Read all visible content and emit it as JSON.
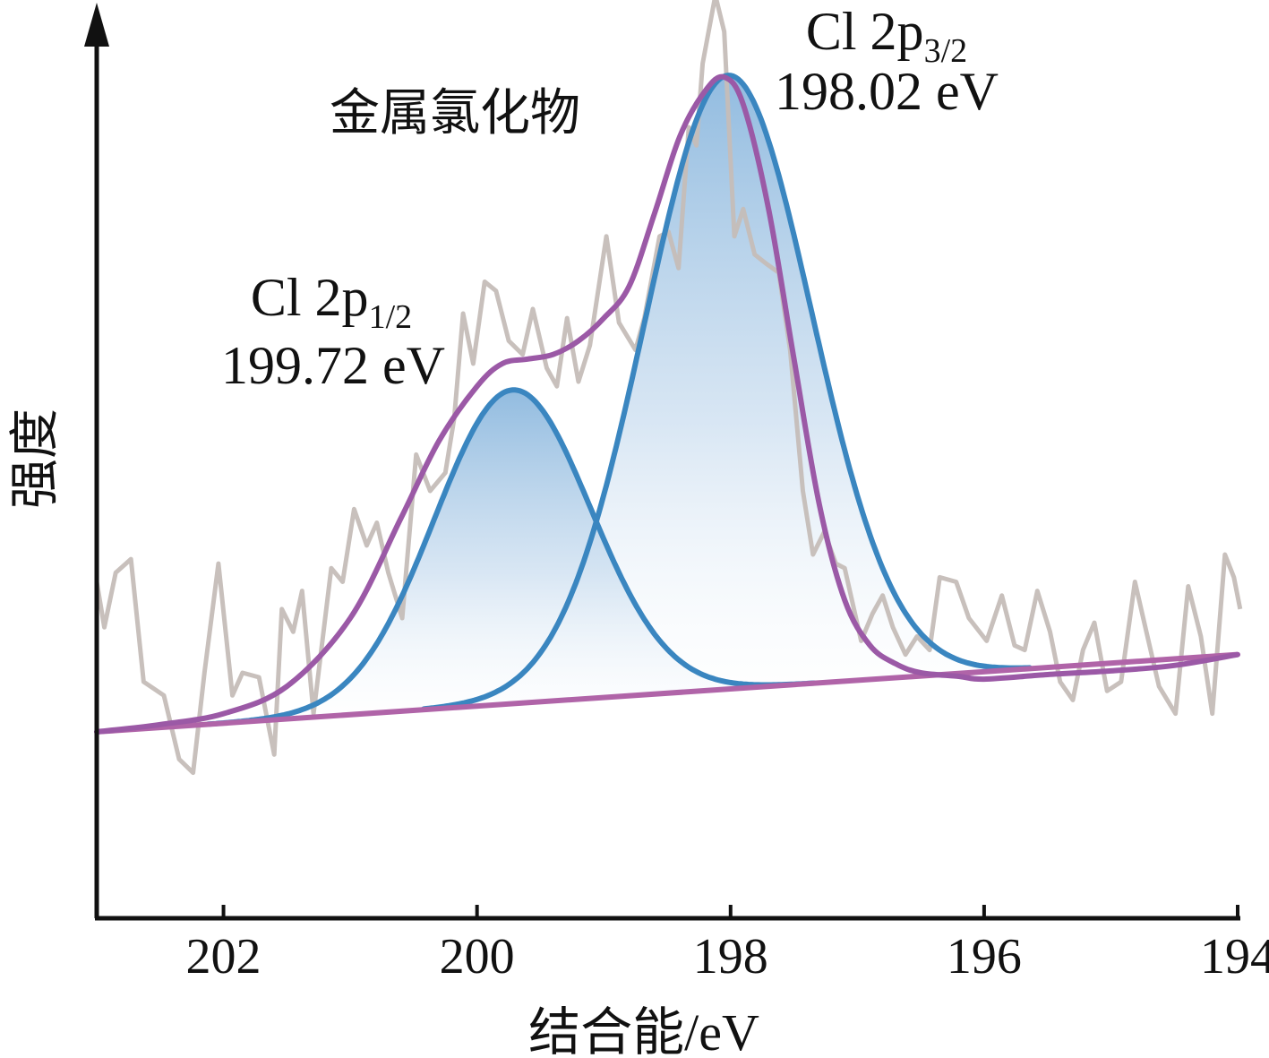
{
  "chart_data": {
    "type": "line",
    "title": "金属氯化物",
    "xlabel": "结合能/eV",
    "ylabel": "强度",
    "xlim": [
      203.0,
      194.0
    ],
    "x_reversed": true,
    "ylim": [
      0,
      100
    ],
    "x_ticks": [
      202,
      200,
      198,
      196,
      194
    ],
    "x_tick_labels": [
      "202",
      "200",
      "198",
      "196",
      "194"
    ],
    "y_ticks_shown": false,
    "grid": false,
    "legend": "none",
    "colors": {
      "raw": "#c5bdb8",
      "envelope": "#9b59a6",
      "background": "#b064a8",
      "component": "#3a86c0",
      "component_light": "#7ab8e0",
      "fill_top": "#8cb8de",
      "axis": "#111111"
    },
    "annotations": [
      {
        "name": "peak-3-2",
        "line1": "Cl 2p",
        "sub": "3/2",
        "line2": "198.02 eV",
        "x": 198.02
      },
      {
        "name": "peak-1-2",
        "line1": "Cl 2p",
        "sub": "1/2",
        "line2": "199.72 eV",
        "x": 199.72
      }
    ],
    "background_line": {
      "x": [
        203.0,
        194.0
      ],
      "y": [
        20.5,
        29.0
      ]
    },
    "components": [
      {
        "name": "Cl 2p3/2",
        "center": 198.02,
        "height": 67.5,
        "fwhm": 1.55
      },
      {
        "name": "Cl 2p1/2",
        "center": 199.72,
        "height": 34.5,
        "fwhm": 1.45
      }
    ],
    "series": [
      {
        "name": "raw",
        "x": [
          203.0,
          202.94,
          202.85,
          202.73,
          202.63,
          202.47,
          202.35,
          202.24,
          202.15,
          202.04,
          201.93,
          201.85,
          201.72,
          201.6,
          201.54,
          201.45,
          201.38,
          201.29,
          201.15,
          201.06,
          200.97,
          200.87,
          200.79,
          200.7,
          200.59,
          200.48,
          200.37,
          200.25,
          200.18,
          200.11,
          200.03,
          199.94,
          199.85,
          199.75,
          199.64,
          199.56,
          199.45,
          199.37,
          199.29,
          199.2,
          199.11,
          198.98,
          198.88,
          198.75,
          198.68,
          198.56,
          198.49,
          198.41,
          198.33,
          198.27,
          198.22,
          198.12,
          198.05,
          197.97,
          197.9,
          197.81,
          197.72,
          197.62,
          197.53,
          197.43,
          197.35,
          197.26,
          197.17,
          197.1,
          196.97,
          196.88,
          196.8,
          196.72,
          196.62,
          196.53,
          196.43,
          196.35,
          196.22,
          196.12,
          195.98,
          195.86,
          195.76,
          195.68,
          195.58,
          195.48,
          195.4,
          195.3,
          195.22,
          195.13,
          195.03,
          194.92,
          194.81,
          194.72,
          194.62,
          194.49,
          194.39,
          194.29,
          194.2,
          194.1,
          194.03,
          193.98
        ],
        "y": [
          37,
          32,
          38,
          39.5,
          26,
          24.5,
          17.5,
          16,
          27,
          39,
          24.5,
          27,
          26.5,
          18,
          34,
          31.5,
          36,
          22.5,
          38.5,
          37,
          45,
          41,
          43.5,
          38,
          33,
          51,
          47,
          49,
          55,
          66.5,
          61,
          70,
          69,
          63.5,
          62,
          67,
          60.5,
          58.5,
          66,
          59,
          63,
          75,
          65.5,
          62.5,
          66,
          75,
          75.5,
          71.5,
          87,
          85,
          94,
          101.5,
          97.5,
          75,
          78,
          73,
          72,
          71,
          62.5,
          47,
          40,
          42.5,
          39,
          38.5,
          30.5,
          33.5,
          35.5,
          32,
          29,
          31,
          29.5,
          37.5,
          37,
          33,
          30.5,
          35.5,
          30,
          29.5,
          36,
          31.5,
          26,
          24,
          29.5,
          32.5,
          25,
          26,
          37,
          31.5,
          25.5,
          22.5,
          36.5,
          31,
          22.5,
          40,
          37.5,
          34
        ]
      },
      {
        "name": "envelope",
        "x": [
          203.0,
          202.5,
          202.0,
          201.5,
          201.0,
          200.6,
          200.3,
          200.0,
          199.8,
          199.6,
          199.4,
          199.2,
          199.0,
          198.8,
          198.6,
          198.4,
          198.2,
          198.05,
          197.9,
          197.7,
          197.5,
          197.3,
          197.1,
          196.9,
          196.7,
          196.5,
          196.2,
          196.0,
          195.5,
          195.0,
          194.5,
          194.0
        ],
        "y": [
          20.5,
          21.3,
          22.5,
          25.5,
          33,
          44,
          52.5,
          58.5,
          61,
          61.5,
          62,
          63.5,
          66,
          69.5,
          77.5,
          86,
          91,
          92.5,
          89.5,
          78,
          61.5,
          45.5,
          35,
          30,
          28,
          27,
          26.6,
          26.3,
          26.8,
          27.2,
          27.8,
          29
        ]
      }
    ]
  }
}
